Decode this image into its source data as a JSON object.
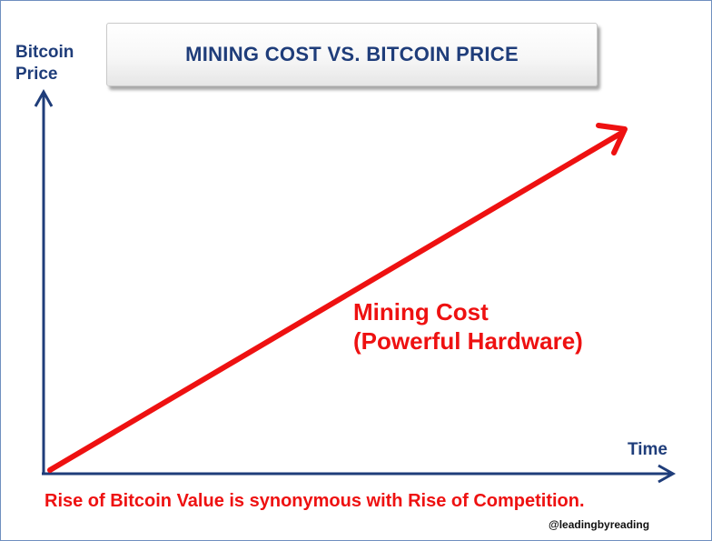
{
  "title": "MINING COST VS. BITCOIN PRICE",
  "y_axis_label": {
    "line1": "Bitcoin",
    "line2": "Price"
  },
  "x_axis_label": "Time",
  "series_label": {
    "line1": "Mining Cost",
    "line2": "(Powerful Hardware)"
  },
  "caption": "Rise of Bitcoin Value is synonymous with Rise of Competition.",
  "credit": "@leadingbyreading",
  "colors": {
    "axis": "#1f3d7a",
    "line": "#ee1111",
    "title_text": "#1f3d7a",
    "frame": "#6f8fbf"
  }
}
